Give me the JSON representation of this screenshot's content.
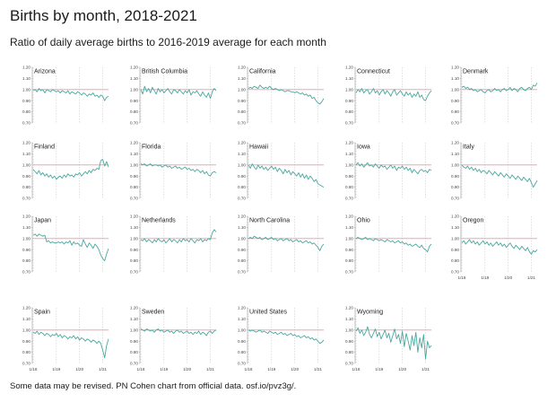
{
  "title": "Births by month, 2018-2021",
  "subtitle": "Ratio of daily average births to 2016-2019 average for each month",
  "footer": "Some data may be revised. PN Cohen chart from official data. osf.io/pvz3g/.",
  "colors": {
    "line": "#4aa8a0",
    "reference": "#e39aa6",
    "grid": "#bfbfbf",
    "axis": "#999999"
  },
  "chart_data": {
    "type": "line",
    "layout": "small-multiples",
    "title": "Births by month, 2018-2021",
    "subtitle": "Ratio of daily average births to 2016-2019 average for each month",
    "ylim": [
      0.7,
      1.2
    ],
    "y_ticks": [
      "1.20",
      "1.10",
      "1.00",
      "0.90",
      "0.80",
      "0.70"
    ],
    "x_ticks": [
      "1/18",
      "1/19",
      "1/20",
      "1/21"
    ],
    "x_tick_positions": [
      1,
      13,
      25,
      37
    ],
    "reference_line": 1.0,
    "grid": "vertical-dashed",
    "panels": [
      {
        "name": "Arizona",
        "values": [
          0.99,
          1.0,
          0.98,
          1.01,
          0.99,
          1.0,
          0.97,
          1.0,
          0.99,
          0.98,
          1.0,
          0.99,
          0.98,
          0.99,
          0.97,
          0.99,
          0.98,
          0.97,
          0.99,
          0.96,
          0.98,
          0.97,
          0.96,
          0.98,
          0.97,
          0.95,
          0.97,
          0.96,
          0.94,
          0.96,
          0.95,
          0.97,
          0.94,
          0.95,
          0.93,
          0.95,
          0.94,
          0.9,
          0.93,
          0.94
        ]
      },
      {
        "name": "British Columbia",
        "values": [
          1.0,
          0.96,
          1.03,
          0.98,
          1.01,
          0.97,
          1.02,
          0.99,
          0.96,
          1.01,
          0.98,
          1.0,
          0.97,
          0.99,
          1.01,
          0.98,
          0.96,
          1.0,
          0.99,
          0.97,
          1.0,
          0.98,
          0.96,
          0.99,
          0.97,
          1.0,
          0.95,
          0.98,
          0.97,
          0.99,
          0.96,
          0.94,
          0.98,
          0.95,
          0.93,
          0.97,
          0.92,
          0.98,
          1.01,
          0.99
        ]
      },
      {
        "name": "California",
        "values": [
          1.01,
          1.02,
          1.01,
          1.03,
          1.02,
          1.01,
          1.04,
          1.02,
          1.01,
          1.02,
          1.01,
          1.03,
          1.01,
          1.0,
          1.01,
          1.0,
          0.99,
          1.0,
          0.99,
          0.98,
          0.99,
          0.99,
          0.98,
          0.98,
          0.97,
          0.98,
          0.97,
          0.96,
          0.97,
          0.95,
          0.96,
          0.94,
          0.95,
          0.92,
          0.93,
          0.9,
          0.88,
          0.87,
          0.89,
          0.92
        ]
      },
      {
        "name": "Connecticut",
        "values": [
          0.97,
          1.0,
          0.98,
          1.01,
          0.97,
          0.99,
          1.0,
          0.96,
          0.98,
          1.01,
          0.97,
          0.99,
          0.95,
          0.98,
          1.0,
          0.96,
          0.99,
          0.97,
          0.94,
          0.98,
          1.0,
          0.95,
          0.97,
          0.99,
          0.96,
          0.94,
          0.98,
          0.95,
          0.97,
          0.93,
          0.96,
          0.94,
          0.98,
          0.93,
          0.95,
          0.91,
          0.9,
          0.94,
          0.97,
          0.99
        ]
      },
      {
        "name": "Denmark",
        "values": [
          1.02,
          1.03,
          1.01,
          1.02,
          1.0,
          1.01,
          0.99,
          1.0,
          0.98,
          0.99,
          1.0,
          0.98,
          0.97,
          0.99,
          1.0,
          0.98,
          0.99,
          1.01,
          0.99,
          1.0,
          0.98,
          1.0,
          1.01,
          0.99,
          1.0,
          1.02,
          0.99,
          1.01,
          1.0,
          0.98,
          1.01,
          1.02,
          1.0,
          0.99,
          1.01,
          1.02,
          1.0,
          1.04,
          1.03,
          1.06
        ]
      },
      {
        "name": "Finland",
        "values": [
          0.96,
          0.94,
          0.92,
          0.95,
          0.91,
          0.93,
          0.9,
          0.92,
          0.89,
          0.91,
          0.88,
          0.9,
          0.87,
          0.89,
          0.9,
          0.88,
          0.91,
          0.89,
          0.92,
          0.9,
          0.91,
          0.89,
          0.92,
          0.91,
          0.93,
          0.9,
          0.92,
          0.94,
          0.92,
          0.95,
          0.93,
          0.96,
          0.95,
          0.97,
          0.96,
          1.04,
          1.05,
          0.99,
          1.03,
          0.98
        ]
      },
      {
        "name": "Florida",
        "values": [
          1.01,
          1.0,
          1.01,
          0.99,
          1.0,
          1.01,
          0.99,
          1.0,
          1.0,
          0.99,
          1.0,
          0.98,
          0.99,
          1.0,
          0.98,
          0.99,
          0.97,
          0.98,
          0.99,
          0.97,
          0.98,
          0.96,
          0.97,
          0.98,
          0.96,
          0.97,
          0.95,
          0.96,
          0.94,
          0.96,
          0.95,
          0.93,
          0.95,
          0.92,
          0.94,
          0.91,
          0.9,
          0.93,
          0.94,
          0.93
        ]
      },
      {
        "name": "Hawaii",
        "values": [
          1.0,
          0.97,
          1.01,
          0.98,
          0.96,
          1.0,
          0.97,
          0.99,
          0.96,
          0.98,
          0.95,
          0.97,
          0.99,
          0.96,
          0.98,
          0.94,
          0.97,
          0.95,
          0.92,
          0.96,
          0.93,
          0.95,
          0.91,
          0.94,
          0.92,
          0.9,
          0.93,
          0.89,
          0.92,
          0.88,
          0.91,
          0.87,
          0.9,
          0.88,
          0.85,
          0.87,
          0.83,
          0.82,
          0.81,
          0.8
        ]
      },
      {
        "name": "Iowa",
        "values": [
          1.0,
          1.02,
          0.99,
          1.01,
          0.98,
          1.0,
          1.02,
          0.99,
          1.0,
          0.98,
          1.01,
          0.99,
          0.97,
          1.0,
          0.98,
          0.99,
          0.96,
          0.98,
          1.0,
          0.97,
          0.99,
          0.95,
          0.98,
          0.97,
          0.99,
          0.96,
          0.98,
          0.95,
          0.97,
          0.93,
          0.96,
          0.94,
          0.92,
          0.95,
          0.96,
          0.94,
          0.95,
          0.93,
          0.96,
          0.95
        ]
      },
      {
        "name": "Italy",
        "values": [
          1.0,
          0.98,
          0.97,
          0.99,
          0.96,
          0.98,
          0.95,
          0.97,
          0.94,
          0.96,
          0.93,
          0.95,
          0.94,
          0.92,
          0.95,
          0.93,
          0.91,
          0.94,
          0.92,
          0.9,
          0.93,
          0.91,
          0.89,
          0.92,
          0.9,
          0.88,
          0.91,
          0.89,
          0.87,
          0.9,
          0.88,
          0.86,
          0.89,
          0.87,
          0.85,
          0.88,
          0.84,
          0.8,
          0.83,
          0.86
        ]
      },
      {
        "name": "Japan",
        "values": [
          1.03,
          1.04,
          1.02,
          1.04,
          1.03,
          1.02,
          1.03,
          0.97,
          0.98,
          0.96,
          0.97,
          0.96,
          0.96,
          0.97,
          0.96,
          0.97,
          0.95,
          0.97,
          0.96,
          0.98,
          0.94,
          0.97,
          0.95,
          0.96,
          0.94,
          0.93,
          0.99,
          0.95,
          0.92,
          0.96,
          0.94,
          0.91,
          0.95,
          0.93,
          0.9,
          0.85,
          0.82,
          0.8,
          0.86,
          0.91
        ]
      },
      {
        "name": "Netherlands",
        "values": [
          0.99,
          0.98,
          1.0,
          0.97,
          0.99,
          0.98,
          0.96,
          0.99,
          0.97,
          1.0,
          0.98,
          0.97,
          0.99,
          0.96,
          0.98,
          1.0,
          0.97,
          0.99,
          0.98,
          0.96,
          0.99,
          0.97,
          1.0,
          0.98,
          0.99,
          0.97,
          1.0,
          0.98,
          0.96,
          0.99,
          0.98,
          1.0,
          0.97,
          0.99,
          0.98,
          1.0,
          0.99,
          1.05,
          1.08,
          1.06
        ]
      },
      {
        "name": "North Carolina",
        "values": [
          1.0,
          1.01,
          1.0,
          1.02,
          1.01,
          1.0,
          1.01,
          0.99,
          1.0,
          1.01,
          0.99,
          1.0,
          1.01,
          0.99,
          1.0,
          0.98,
          0.99,
          1.0,
          0.98,
          0.99,
          1.0,
          0.98,
          0.99,
          0.97,
          0.98,
          0.99,
          0.97,
          0.98,
          0.96,
          0.97,
          0.98,
          0.96,
          0.97,
          0.95,
          0.96,
          0.94,
          0.92,
          0.89,
          0.93,
          0.95
        ]
      },
      {
        "name": "Ohio",
        "values": [
          1.0,
          1.01,
          1.0,
          0.99,
          1.0,
          1.01,
          0.99,
          1.0,
          0.99,
          0.98,
          1.0,
          0.99,
          0.98,
          0.99,
          0.98,
          0.97,
          0.99,
          0.98,
          0.97,
          0.98,
          0.96,
          0.97,
          0.98,
          0.96,
          0.97,
          0.95,
          0.96,
          0.94,
          0.95,
          0.93,
          0.94,
          0.95,
          0.93,
          0.92,
          0.94,
          0.91,
          0.9,
          0.88,
          0.93,
          0.95
        ]
      },
      {
        "name": "Oregon",
        "values": [
          0.96,
          0.98,
          0.95,
          0.97,
          0.99,
          0.96,
          0.98,
          0.95,
          0.97,
          0.94,
          0.96,
          0.98,
          0.95,
          0.97,
          0.94,
          0.96,
          0.93,
          0.95,
          0.97,
          0.94,
          0.96,
          0.93,
          0.95,
          0.92,
          0.94,
          0.96,
          0.93,
          0.91,
          0.94,
          0.92,
          0.9,
          0.93,
          0.91,
          0.89,
          0.92,
          0.88,
          0.86,
          0.89,
          0.88,
          0.9
        ]
      },
      {
        "name": "Spain",
        "values": [
          0.98,
          0.97,
          0.99,
          0.96,
          0.98,
          0.97,
          0.95,
          0.97,
          0.96,
          0.94,
          0.96,
          0.95,
          0.97,
          0.94,
          0.96,
          0.93,
          0.95,
          0.94,
          0.92,
          0.94,
          0.93,
          0.95,
          0.92,
          0.94,
          0.91,
          0.93,
          0.92,
          0.9,
          0.92,
          0.91,
          0.89,
          0.91,
          0.9,
          0.88,
          0.9,
          0.88,
          0.82,
          0.75,
          0.86,
          0.92
        ]
      },
      {
        "name": "Sweden",
        "values": [
          1.01,
          1.0,
          0.99,
          1.01,
          1.0,
          0.99,
          1.0,
          0.98,
          1.0,
          1.01,
          0.99,
          1.0,
          0.98,
          0.99,
          1.0,
          0.98,
          0.99,
          0.97,
          0.99,
          1.0,
          0.98,
          0.99,
          0.97,
          0.98,
          0.99,
          0.97,
          0.98,
          0.96,
          0.98,
          0.97,
          0.99,
          0.96,
          0.98,
          0.97,
          0.95,
          0.98,
          0.99,
          0.97,
          0.99,
          1.0
        ]
      },
      {
        "name": "United States",
        "values": [
          1.0,
          0.99,
          1.0,
          0.99,
          0.98,
          0.99,
          1.0,
          0.98,
          0.99,
          0.98,
          0.97,
          0.99,
          0.98,
          0.97,
          0.98,
          0.96,
          0.97,
          0.98,
          0.96,
          0.97,
          0.95,
          0.96,
          0.97,
          0.95,
          0.96,
          0.94,
          0.95,
          0.93,
          0.94,
          0.95,
          0.93,
          0.94,
          0.92,
          0.93,
          0.91,
          0.92,
          0.9,
          0.88,
          0.89,
          0.91
        ]
      },
      {
        "name": "Wyoming",
        "values": [
          0.99,
          1.02,
          0.97,
          1.0,
          0.95,
          0.98,
          1.03,
          0.96,
          0.93,
          0.97,
          1.01,
          0.94,
          0.98,
          0.92,
          0.96,
          1.0,
          0.93,
          0.97,
          0.89,
          0.95,
          1.01,
          0.92,
          0.96,
          0.88,
          0.99,
          0.85,
          0.97,
          0.9,
          0.82,
          0.95,
          0.86,
          0.98,
          0.8,
          0.93,
          0.84,
          0.96,
          0.74,
          0.9,
          0.84,
          0.86
        ]
      }
    ]
  }
}
